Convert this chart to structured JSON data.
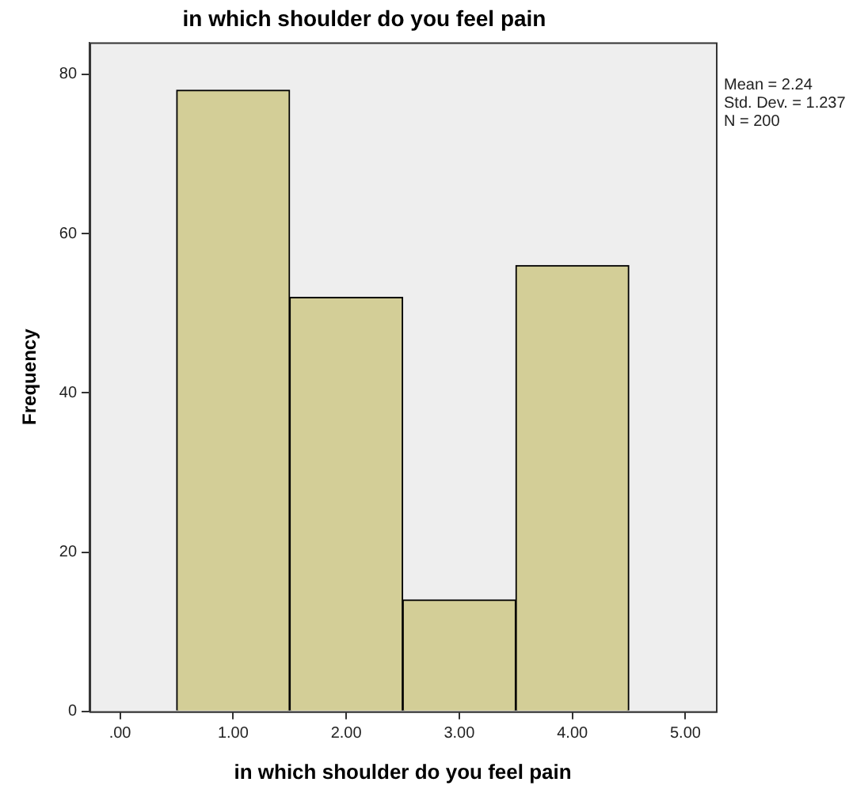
{
  "chart_data": {
    "type": "histogram",
    "title": "in which shoulder do you feel pain",
    "xlabel": "in which shoulder do you feel pain",
    "ylabel": "Frequency",
    "bins": [
      0.5,
      1.5,
      2.5,
      3.5,
      4.5
    ],
    "values": [
      78,
      52,
      14,
      56
    ],
    "color": "#d3ce97",
    "xlim": [
      -0.27,
      5.27
    ],
    "xticks": [
      {
        "value": 0,
        "label": ".00"
      },
      {
        "value": 1,
        "label": "1.00"
      },
      {
        "value": 2,
        "label": "2.00"
      },
      {
        "value": 3,
        "label": "3.00"
      },
      {
        "value": 4,
        "label": "4.00"
      },
      {
        "value": 5,
        "label": "5.00"
      }
    ],
    "ylim": [
      0,
      84
    ],
    "yticks": [
      0,
      20,
      40,
      60,
      80
    ],
    "grid": false,
    "legend": false,
    "annotations": [
      "Mean = 2.24",
      "Std. Dev. = 1.237",
      "N = 200"
    ]
  }
}
